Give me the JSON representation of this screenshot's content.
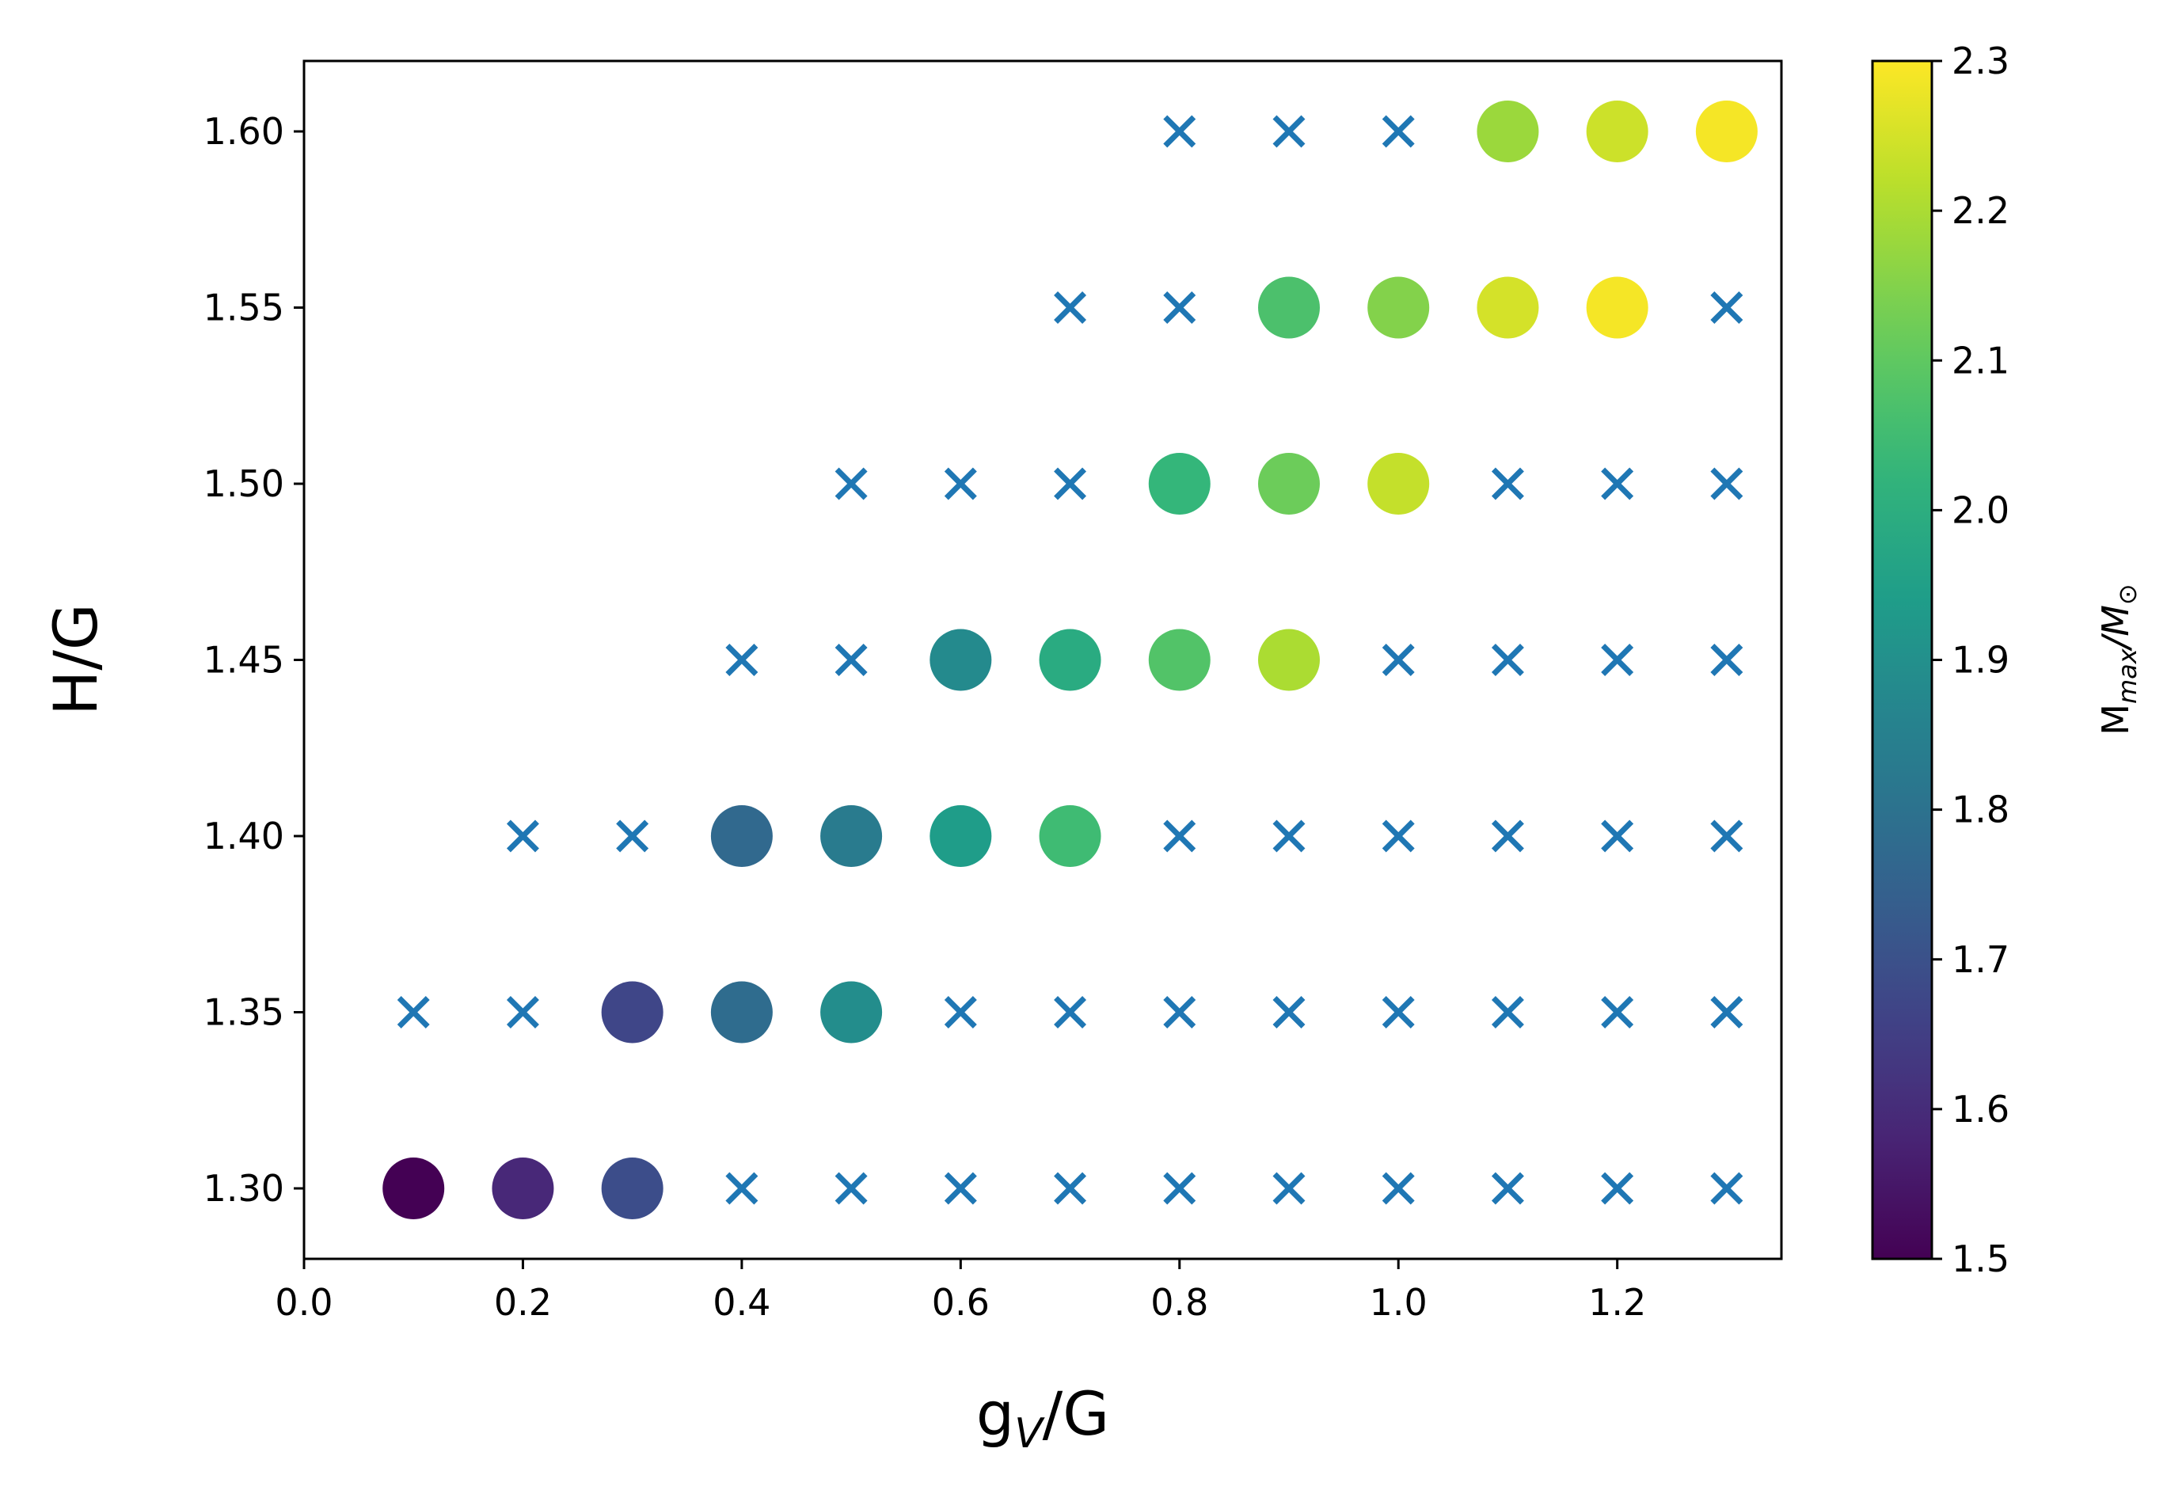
{
  "chart_data": {
    "type": "scatter",
    "xlabel": "g",
    "xlabel_sub": "V",
    "xlabel_tail": "/G",
    "ylabel": "H/G",
    "colorbar": {
      "label_main": "M",
      "label_sub_main": "max",
      "label_slash": "/M",
      "label_sub_sun": "⊙",
      "range": [
        1.5,
        2.3
      ],
      "ticks": [
        1.5,
        1.6,
        1.7,
        1.8,
        1.9,
        2.0,
        2.1,
        2.2,
        2.3
      ],
      "tick_labels": [
        "1.5",
        "1.6",
        "1.7",
        "1.8",
        "1.9",
        "2.0",
        "2.1",
        "2.2",
        "2.3"
      ],
      "colormap": "viridis"
    },
    "xlim": [
      0.0,
      1.35
    ],
    "ylim": [
      1.28,
      1.62
    ],
    "xticks": [
      0.0,
      0.2,
      0.4,
      0.6,
      0.8,
      1.0,
      1.2
    ],
    "xtick_labels": [
      "0.0",
      "0.2",
      "0.4",
      "0.6",
      "0.8",
      "1.0",
      "1.2"
    ],
    "yticks": [
      1.3,
      1.35,
      1.4,
      1.45,
      1.5,
      1.55,
      1.6
    ],
    "ytick_labels": [
      "1.30",
      "1.35",
      "1.40",
      "1.45",
      "1.50",
      "1.55",
      "1.60"
    ],
    "grid": false,
    "marker_color_x": "#1f77b4",
    "stable": [
      {
        "x": 0.1,
        "y": 1.3,
        "m": 1.5
      },
      {
        "x": 0.2,
        "y": 1.3,
        "m": 1.59
      },
      {
        "x": 0.3,
        "y": 1.3,
        "m": 1.69
      },
      {
        "x": 0.3,
        "y": 1.35,
        "m": 1.67
      },
      {
        "x": 0.4,
        "y": 1.35,
        "m": 1.78
      },
      {
        "x": 0.5,
        "y": 1.35,
        "m": 1.89
      },
      {
        "x": 0.4,
        "y": 1.4,
        "m": 1.77
      },
      {
        "x": 0.5,
        "y": 1.4,
        "m": 1.83
      },
      {
        "x": 0.6,
        "y": 1.4,
        "m": 1.94
      },
      {
        "x": 0.7,
        "y": 1.4,
        "m": 2.05
      },
      {
        "x": 0.6,
        "y": 1.45,
        "m": 1.88
      },
      {
        "x": 0.7,
        "y": 1.45,
        "m": 1.99
      },
      {
        "x": 0.8,
        "y": 1.45,
        "m": 2.08
      },
      {
        "x": 0.9,
        "y": 1.45,
        "m": 2.2
      },
      {
        "x": 0.8,
        "y": 1.5,
        "m": 2.03
      },
      {
        "x": 0.9,
        "y": 1.5,
        "m": 2.12
      },
      {
        "x": 1.0,
        "y": 1.5,
        "m": 2.23
      },
      {
        "x": 0.9,
        "y": 1.55,
        "m": 2.07
      },
      {
        "x": 1.0,
        "y": 1.55,
        "m": 2.15
      },
      {
        "x": 1.1,
        "y": 1.55,
        "m": 2.25
      },
      {
        "x": 1.2,
        "y": 1.55,
        "m": 2.29
      },
      {
        "x": 1.1,
        "y": 1.6,
        "m": 2.18
      },
      {
        "x": 1.2,
        "y": 1.6,
        "m": 2.24
      },
      {
        "x": 1.3,
        "y": 1.6,
        "m": 2.29
      }
    ],
    "unstable": [
      {
        "x": 0.4,
        "y": 1.3
      },
      {
        "x": 0.5,
        "y": 1.3
      },
      {
        "x": 0.6,
        "y": 1.3
      },
      {
        "x": 0.7,
        "y": 1.3
      },
      {
        "x": 0.8,
        "y": 1.3
      },
      {
        "x": 0.9,
        "y": 1.3
      },
      {
        "x": 1.0,
        "y": 1.3
      },
      {
        "x": 1.1,
        "y": 1.3
      },
      {
        "x": 1.2,
        "y": 1.3
      },
      {
        "x": 1.3,
        "y": 1.3
      },
      {
        "x": 0.1,
        "y": 1.35
      },
      {
        "x": 0.2,
        "y": 1.35
      },
      {
        "x": 0.6,
        "y": 1.35
      },
      {
        "x": 0.7,
        "y": 1.35
      },
      {
        "x": 0.8,
        "y": 1.35
      },
      {
        "x": 0.9,
        "y": 1.35
      },
      {
        "x": 1.0,
        "y": 1.35
      },
      {
        "x": 1.1,
        "y": 1.35
      },
      {
        "x": 1.2,
        "y": 1.35
      },
      {
        "x": 1.3,
        "y": 1.35
      },
      {
        "x": 0.2,
        "y": 1.4
      },
      {
        "x": 0.3,
        "y": 1.4
      },
      {
        "x": 0.8,
        "y": 1.4
      },
      {
        "x": 0.9,
        "y": 1.4
      },
      {
        "x": 1.0,
        "y": 1.4
      },
      {
        "x": 1.1,
        "y": 1.4
      },
      {
        "x": 1.2,
        "y": 1.4
      },
      {
        "x": 1.3,
        "y": 1.4
      },
      {
        "x": 0.4,
        "y": 1.45
      },
      {
        "x": 0.5,
        "y": 1.45
      },
      {
        "x": 1.0,
        "y": 1.45
      },
      {
        "x": 1.1,
        "y": 1.45
      },
      {
        "x": 1.2,
        "y": 1.45
      },
      {
        "x": 1.3,
        "y": 1.45
      },
      {
        "x": 0.5,
        "y": 1.5
      },
      {
        "x": 0.6,
        "y": 1.5
      },
      {
        "x": 0.7,
        "y": 1.5
      },
      {
        "x": 1.1,
        "y": 1.5
      },
      {
        "x": 1.2,
        "y": 1.5
      },
      {
        "x": 1.3,
        "y": 1.5
      },
      {
        "x": 0.7,
        "y": 1.55
      },
      {
        "x": 0.8,
        "y": 1.55
      },
      {
        "x": 1.3,
        "y": 1.55
      },
      {
        "x": 0.8,
        "y": 1.6
      },
      {
        "x": 0.9,
        "y": 1.6
      },
      {
        "x": 1.0,
        "y": 1.6
      }
    ]
  }
}
